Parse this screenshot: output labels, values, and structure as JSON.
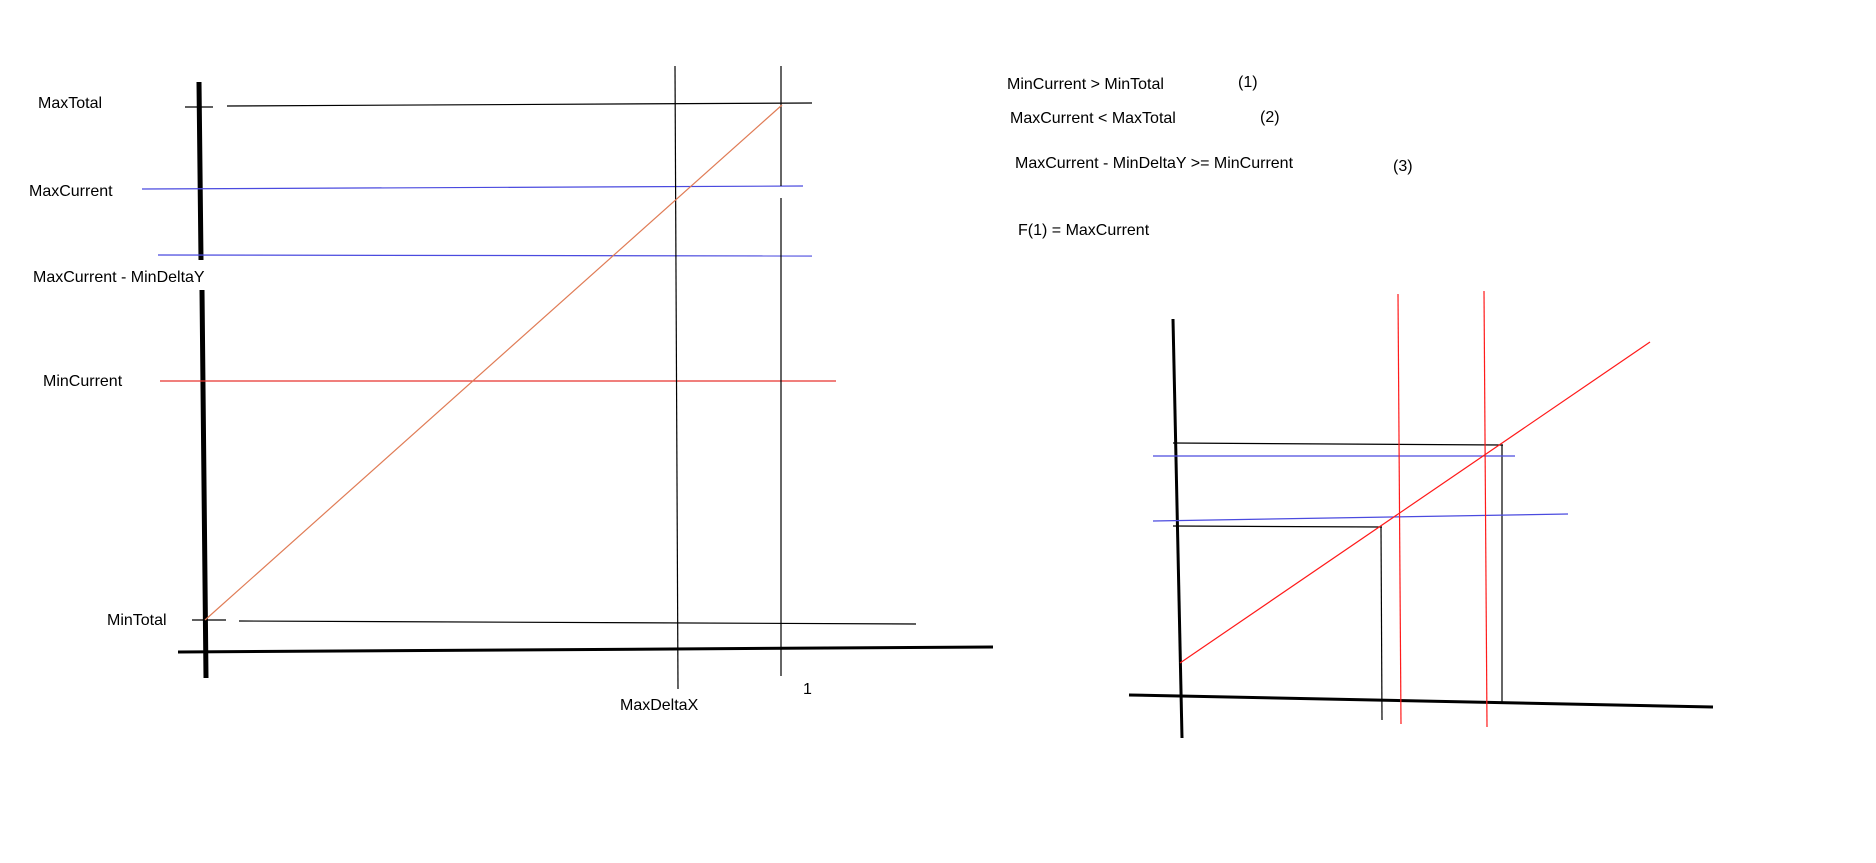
{
  "left_diagram": {
    "y_labels": {
      "max_total": "MaxTotal",
      "max_current": "MaxCurrent",
      "max_current_minus_delta": "MaxCurrent - MinDeltaY",
      "min_current": "MinCurrent",
      "min_total": "MinTotal"
    },
    "x_labels": {
      "max_delta_x": "MaxDeltaX",
      "one": "1"
    }
  },
  "conditions": [
    {
      "text": "MinCurrent > MinTotal",
      "number": "(1)"
    },
    {
      "text": "MaxCurrent < MaxTotal",
      "number": "(2)"
    },
    {
      "text": "MaxCurrent - MinDeltaY >= MinCurrent",
      "number": "(3)"
    },
    {
      "text": "F(1) = MaxCurrent",
      "number": ""
    }
  ],
  "colors": {
    "axis": "#000000",
    "black_line": "#000000",
    "blue_line": "#4a4adf",
    "red_line": "#e8332e",
    "diagonal_left": "#e07c56",
    "red_right": "#ff1a1a"
  }
}
